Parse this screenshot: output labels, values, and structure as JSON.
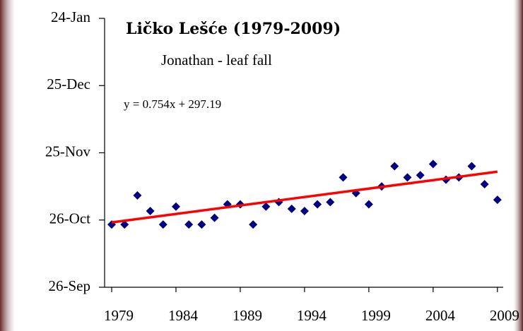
{
  "chart_data": {
    "type": "scatter",
    "title": "Ličko Lešće (1979-2009)",
    "subtitle": "Jonathan - leaf fall",
    "annotation": "y = 0.754x + 297.19",
    "x": [
      1979,
      1980,
      1981,
      1982,
      1983,
      1984,
      1985,
      1986,
      1987,
      1988,
      1989,
      1990,
      1991,
      1992,
      1993,
      1994,
      1995,
      1996,
      1997,
      1998,
      1999,
      2000,
      2001,
      2002,
      2003,
      2004,
      2005,
      2006,
      2007,
      2008,
      2009
    ],
    "series": [
      {
        "color": "#000080",
        "values": [
          297,
          297,
          310,
          303,
          297,
          305,
          297,
          297,
          300,
          306,
          306,
          297,
          305,
          307,
          304,
          303,
          306,
          307,
          318,
          311,
          306,
          314,
          323,
          318,
          319,
          324,
          317,
          318,
          323,
          315,
          308
        ]
      }
    ],
    "trendline": {
      "slope": 0.754,
      "intercept": 297.19,
      "color": "#ff0000"
    },
    "xlim": [
      1978.45,
      2009.45
    ],
    "xticks": [
      1979,
      1984,
      1989,
      1994,
      1999,
      2004,
      2009
    ],
    "ylim": [
      269,
      389
    ],
    "yticks": [
      {
        "value": 269,
        "label": "26-Sep"
      },
      {
        "value": 299,
        "label": "26-Oct"
      },
      {
        "value": 329,
        "label": "25-Nov"
      },
      {
        "value": 359,
        "label": "25-Dec"
      },
      {
        "value": 389,
        "label": "24-Jan"
      }
    ]
  }
}
